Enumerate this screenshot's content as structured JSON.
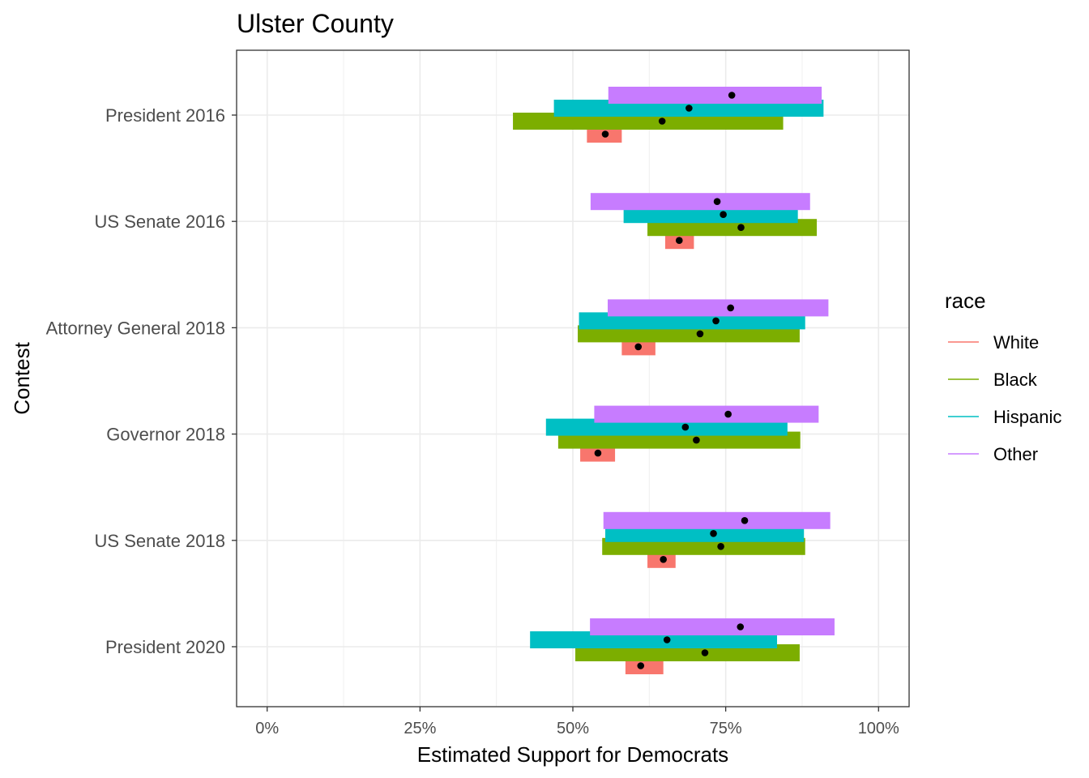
{
  "chart_data": {
    "type": "bar",
    "title": "Ulster County",
    "xlabel": "Estimated Support for Democrats",
    "ylabel": "Contest",
    "xlim": [
      -0.05,
      1.05
    ],
    "x_ticks": [
      0,
      0.25,
      0.5,
      0.75,
      1.0
    ],
    "x_tick_labels": [
      "0%",
      "25%",
      "50%",
      "75%",
      "100%"
    ],
    "grid": true,
    "legend_title": "race",
    "legend_position": "right",
    "categories": [
      "President 2016",
      "US Senate 2016",
      "Attorney General 2018",
      "Governor 2018",
      "US Senate 2018",
      "President 2020"
    ],
    "series": [
      {
        "name": "White",
        "color": "#F8766D",
        "estimate": [
          0.553,
          0.674,
          0.607,
          0.541,
          0.648,
          0.611
        ],
        "lower": [
          0.523,
          0.651,
          0.58,
          0.512,
          0.622,
          0.586
        ],
        "upper": [
          0.58,
          0.698,
          0.635,
          0.569,
          0.668,
          0.648
        ]
      },
      {
        "name": "Black",
        "color": "#7CAE00",
        "estimate": [
          0.646,
          0.775,
          0.708,
          0.702,
          0.742,
          0.716
        ],
        "lower": [
          0.402,
          0.622,
          0.508,
          0.476,
          0.548,
          0.504
        ],
        "upper": [
          0.844,
          0.899,
          0.871,
          0.872,
          0.88,
          0.871
        ]
      },
      {
        "name": "Hispanic",
        "color": "#00BFC4",
        "estimate": [
          0.69,
          0.746,
          0.734,
          0.684,
          0.73,
          0.654
        ],
        "lower": [
          0.469,
          0.583,
          0.51,
          0.456,
          0.553,
          0.43
        ],
        "upper": [
          0.91,
          0.868,
          0.88,
          0.851,
          0.878,
          0.834
        ]
      },
      {
        "name": "Other",
        "color": "#C77CFF",
        "estimate": [
          0.76,
          0.736,
          0.758,
          0.754,
          0.781,
          0.774
        ],
        "lower": [
          0.558,
          0.529,
          0.557,
          0.535,
          0.55,
          0.528
        ],
        "upper": [
          0.907,
          0.888,
          0.918,
          0.902,
          0.921,
          0.928
        ]
      }
    ]
  }
}
